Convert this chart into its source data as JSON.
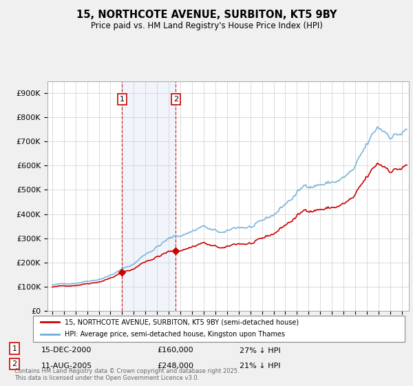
{
  "title": "15, NORTHCOTE AVENUE, SURBITON, KT5 9BY",
  "subtitle": "Price paid vs. HM Land Registry's House Price Index (HPI)",
  "ylim": [
    0,
    950000
  ],
  "yticks": [
    0,
    100000,
    200000,
    300000,
    400000,
    500000,
    600000,
    700000,
    800000,
    900000
  ],
  "ytick_labels": [
    "£0",
    "£100K",
    "£200K",
    "£300K",
    "£400K",
    "£500K",
    "£600K",
    "£700K",
    "£800K",
    "£900K"
  ],
  "hpi_color": "#6baed6",
  "price_color": "#cc0000",
  "bg_color": "#f0f0f0",
  "plot_bg_color": "#ffffff",
  "grid_color": "#cccccc",
  "shade_color": "#c8d8f0",
  "legend_label_red": "15, NORTHCOTE AVENUE, SURBITON, KT5 9BY (semi-detached house)",
  "legend_label_blue": "HPI: Average price, semi-detached house, Kingston upon Thames",
  "annotation1_label": "1",
  "annotation1_date": "15-DEC-2000",
  "annotation1_price": "£160,000",
  "annotation1_hpi": "27% ↓ HPI",
  "annotation2_label": "2",
  "annotation2_date": "11-AUG-2005",
  "annotation2_price": "£248,000",
  "annotation2_hpi": "21% ↓ HPI",
  "footer": "Contains HM Land Registry data © Crown copyright and database right 2025.\nThis data is licensed under the Open Government Licence v3.0.",
  "sale1_x": 2001.0,
  "sale1_y": 160000,
  "sale2_x": 2005.6,
  "sale2_y": 248000,
  "xlim_left": 1994.6,
  "xlim_right": 2025.6
}
